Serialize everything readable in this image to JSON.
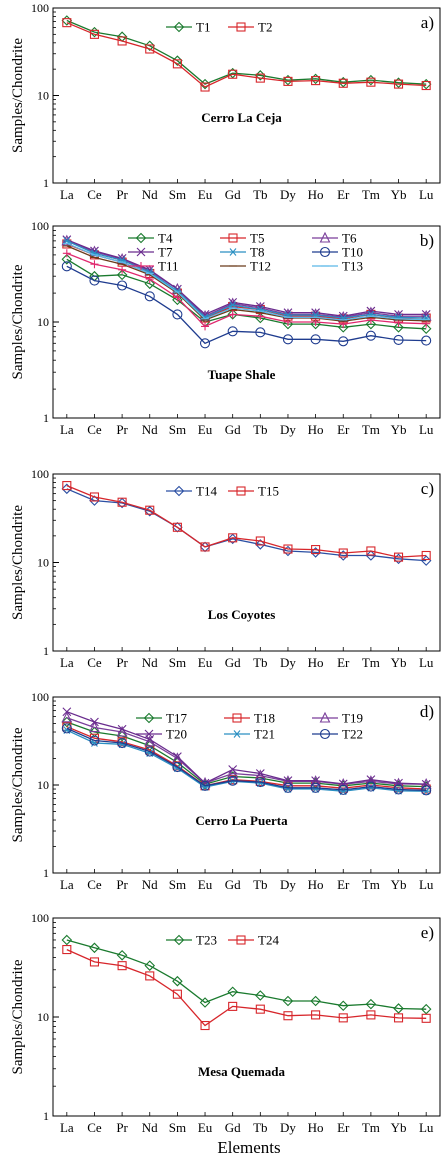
{
  "figure": {
    "xlabel": "Elements"
  },
  "chart_data": [
    {
      "type": "line",
      "panel_letter": "a)",
      "annotation": "Cerro La Ceja",
      "ylabel": "Samples/Chondrite",
      "y_scale": "log",
      "ylim": [
        1,
        100
      ],
      "y_ticks": [
        "1",
        "10",
        "100"
      ],
      "categories": [
        "La",
        "Ce",
        "Pr",
        "Nd",
        "Sm",
        "Eu",
        "Gd",
        "Tb",
        "Dy",
        "Ho",
        "Er",
        "Tm",
        "Yb",
        "Lu"
      ],
      "legend_position": "top-center",
      "series": [
        {
          "name": "T1",
          "color": "#1a7a2e",
          "marker": "diamond",
          "values": [
            72,
            53,
            47,
            37,
            25,
            13.5,
            18,
            17,
            15,
            15.5,
            14.2,
            15,
            14,
            13.5
          ]
        },
        {
          "name": "T2",
          "color": "#d7262b",
          "marker": "square",
          "values": [
            68,
            50,
            42,
            34,
            23,
            12.5,
            17.5,
            15.8,
            14.5,
            14.8,
            13.8,
            14.2,
            13.5,
            13
          ]
        }
      ]
    },
    {
      "type": "line",
      "panel_letter": "b)",
      "annotation": "Tuape Shale",
      "ylabel": "Samples/Chondrite",
      "y_scale": "log",
      "ylim": [
        1,
        100
      ],
      "y_ticks": [
        "1",
        "10",
        "100"
      ],
      "categories": [
        "La",
        "Ce",
        "Pr",
        "Nd",
        "Sm",
        "Eu",
        "Gd",
        "Tb",
        "Dy",
        "Ho",
        "Er",
        "Tm",
        "Yb",
        "Lu"
      ],
      "legend_position": "top",
      "series": [
        {
          "name": "T4",
          "color": "#1a7a2e",
          "marker": "diamond",
          "values": [
            45,
            30,
            31,
            25,
            17,
            10,
            12,
            11,
            9.5,
            9.5,
            8.8,
            9.5,
            8.8,
            8.5
          ]
        },
        {
          "name": "T5",
          "color": "#d7262b",
          "marker": "square",
          "values": [
            65,
            50,
            42,
            32,
            20,
            11,
            14.5,
            13.5,
            11.5,
            11.5,
            10.8,
            12,
            11,
            11
          ]
        },
        {
          "name": "T6",
          "color": "#7a3f9b",
          "marker": "triangle",
          "values": [
            70,
            54,
            45,
            34,
            22,
            11.5,
            15.5,
            14,
            12,
            12,
            11.2,
            12.5,
            11.5,
            11.5
          ]
        },
        {
          "name": "T7",
          "color": "#6a2c8e",
          "marker": "x",
          "values": [
            72,
            55,
            46,
            35,
            22,
            12,
            16,
            14.5,
            12.5,
            12.5,
            11.5,
            13,
            12,
            12
          ]
        },
        {
          "name": "T8",
          "color": "#2a8fc2",
          "marker": "asterisk",
          "values": [
            70,
            52,
            44,
            33,
            21,
            11.2,
            15,
            13.5,
            11.8,
            11.8,
            11,
            12,
            11.2,
            11
          ]
        },
        {
          "name": "T10",
          "color": "#1f3c8f",
          "marker": "circle",
          "values": [
            38,
            27,
            24,
            18.5,
            12,
            6,
            8,
            7.8,
            6.6,
            6.6,
            6.3,
            7.2,
            6.5,
            6.4
          ]
        },
        {
          "name": "T11",
          "color": "#e0286e",
          "marker": "plus",
          "values": [
            52,
            40,
            35,
            28,
            18,
            9,
            12,
            11.5,
            10,
            10,
            9.5,
            10.5,
            9.8,
            9.6
          ]
        },
        {
          "name": "T12",
          "color": "#6b3b1a",
          "marker": "dash",
          "values": [
            62,
            47,
            40,
            31,
            20,
            10.5,
            13.5,
            12.5,
            11,
            11,
            10.2,
            11.2,
            10.5,
            10.3
          ]
        },
        {
          "name": "T13",
          "color": "#5ab8e8",
          "marker": "dash",
          "values": [
            66,
            50,
            42,
            32,
            20.5,
            10.8,
            14,
            13,
            11.2,
            11.2,
            10.5,
            11.5,
            10.8,
            10.6
          ]
        }
      ]
    },
    {
      "type": "line",
      "panel_letter": "c)",
      "annotation": "Los Coyotes",
      "ylabel": "Samples/Chondrite",
      "y_scale": "log",
      "ylim": [
        1,
        100
      ],
      "y_ticks": [
        "1",
        "10",
        "100"
      ],
      "categories": [
        "La",
        "Ce",
        "Pr",
        "Nd",
        "Sm",
        "Eu",
        "Gd",
        "Tb",
        "Dy",
        "Ho",
        "Er",
        "Tm",
        "Yb",
        "Lu"
      ],
      "legend_position": "top-center",
      "series": [
        {
          "name": "T14",
          "color": "#2b4fa3",
          "marker": "diamond",
          "values": [
            68,
            50,
            47,
            38,
            25,
            15,
            18.5,
            16,
            13.5,
            13,
            12,
            12,
            11,
            10.5
          ]
        },
        {
          "name": "T15",
          "color": "#d7262b",
          "marker": "square",
          "values": [
            74,
            55,
            48,
            39,
            25,
            15,
            19,
            17.5,
            14.2,
            14,
            12.8,
            13.5,
            11.5,
            12
          ]
        }
      ]
    },
    {
      "type": "line",
      "panel_letter": "d)",
      "annotation": "Cerro La Puerta",
      "ylabel": "Samples/Chondrite",
      "y_scale": "log",
      "ylim": [
        1,
        100
      ],
      "y_ticks": [
        "1",
        "10",
        "100"
      ],
      "categories": [
        "La",
        "Ce",
        "Pr",
        "Nd",
        "Sm",
        "Eu",
        "Gd",
        "Tb",
        "Dy",
        "Ho",
        "Er",
        "Tm",
        "Yb",
        "Lu"
      ],
      "legend_position": "top",
      "series": [
        {
          "name": "T17",
          "color": "#1a7a2e",
          "marker": "diamond",
          "values": [
            52,
            40,
            36,
            28,
            18,
            10.2,
            12.5,
            12,
            10.5,
            10.5,
            9.8,
            10.5,
            9.8,
            9.6
          ]
        },
        {
          "name": "T18",
          "color": "#d7262b",
          "marker": "square",
          "values": [
            46,
            34,
            31,
            25,
            16.5,
            9.8,
            11.5,
            11,
            9.8,
            9.8,
            9.2,
            10,
            9.3,
            9
          ]
        },
        {
          "name": "T19",
          "color": "#7a3f9b",
          "marker": "triangle",
          "values": [
            58,
            45,
            40,
            31,
            20,
            10.5,
            13.5,
            12.8,
            11,
            11,
            10.2,
            11,
            10.3,
            10.2
          ]
        },
        {
          "name": "T20",
          "color": "#6a2c8e",
          "marker": "x",
          "values": [
            68,
            52,
            43,
            33,
            21,
            10.5,
            15,
            13.5,
            11.2,
            11.2,
            10.3,
            11.5,
            10.5,
            10.2
          ]
        },
        {
          "name": "T21",
          "color": "#2a8fc2",
          "marker": "asterisk",
          "values": [
            42,
            30,
            29,
            23,
            15.5,
            9.5,
            11,
            10.5,
            9,
            9,
            8.5,
            9.3,
            8.6,
            8.5
          ]
        },
        {
          "name": "T22",
          "color": "#1f3c8f",
          "marker": "circle",
          "values": [
            44,
            32,
            30,
            24,
            16,
            9.8,
            11.2,
            10.8,
            9.3,
            9.3,
            8.8,
            9.6,
            8.9,
            8.7
          ]
        }
      ]
    },
    {
      "type": "line",
      "panel_letter": "e)",
      "annotation": "Mesa Quemada",
      "ylabel": "Samples/Chondrite",
      "y_scale": "log",
      "ylim": [
        1,
        100
      ],
      "y_ticks": [
        "1",
        "10",
        "100"
      ],
      "categories": [
        "La",
        "Ce",
        "Pr",
        "Nd",
        "Sm",
        "Eu",
        "Gd",
        "Tb",
        "Dy",
        "Ho",
        "Er",
        "Tm",
        "Yb",
        "Lu"
      ],
      "legend_position": "top-center",
      "series": [
        {
          "name": "T23",
          "color": "#1a7a2e",
          "marker": "diamond",
          "values": [
            60,
            50,
            42,
            33,
            23,
            14,
            18,
            16.5,
            14.5,
            14.5,
            13,
            13.5,
            12.2,
            12
          ]
        },
        {
          "name": "T24",
          "color": "#d7262b",
          "marker": "square",
          "values": [
            48,
            36,
            33,
            26,
            17,
            8.2,
            12.8,
            12,
            10.3,
            10.5,
            9.8,
            10.5,
            9.8,
            9.7
          ]
        }
      ]
    }
  ]
}
